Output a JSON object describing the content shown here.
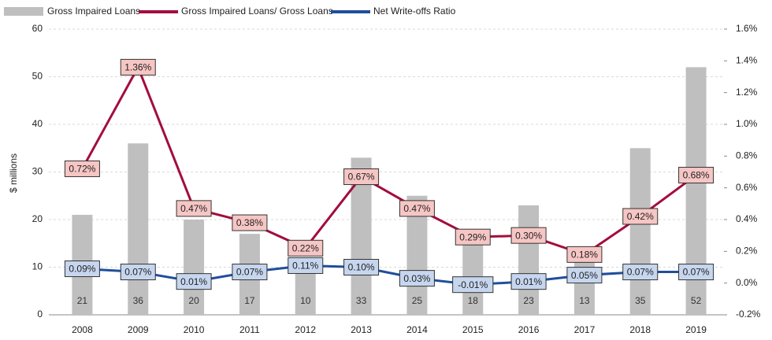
{
  "chart_data": {
    "type": "bar",
    "categories": [
      "2008",
      "2009",
      "2010",
      "2011",
      "2012",
      "2013",
      "2014",
      "2015",
      "2016",
      "2017",
      "2018",
      "2019"
    ],
    "series": [
      {
        "name": "Gross Impaired Loans",
        "type": "bar",
        "color": "#bfbfbf",
        "values": [
          21,
          36,
          20,
          17,
          10,
          33,
          25,
          18,
          23,
          13,
          35,
          52
        ]
      },
      {
        "name": "Gross Impaired Loans/ Gross Loans",
        "type": "line",
        "axis": "y2",
        "color": "#a30d3d",
        "label_fill": "#f6c6c4",
        "values": [
          0.72,
          1.36,
          0.47,
          0.38,
          0.22,
          0.67,
          0.47,
          0.29,
          0.3,
          0.18,
          0.42,
          0.68
        ],
        "value_labels": [
          "0.72%",
          "1.36%",
          "0.47%",
          "0.38%",
          "0.22%",
          "0.67%",
          "0.47%",
          "0.29%",
          "0.30%",
          "0.18%",
          "0.42%",
          "0.68%"
        ]
      },
      {
        "name": "Net Write-offs Ratio",
        "type": "line",
        "axis": "y2",
        "color": "#1f4e9c",
        "label_fill": "#c7d6ef",
        "values": [
          0.09,
          0.07,
          0.01,
          0.07,
          0.11,
          0.1,
          0.03,
          -0.01,
          0.01,
          0.05,
          0.07,
          0.07
        ],
        "value_labels": [
          "0.09%",
          "0.07%",
          "0.01%",
          "0.07%",
          "0.11%",
          "0.10%",
          "0.03%",
          "-0.01%",
          "0.01%",
          "0.05%",
          "0.07%",
          "0.07%"
        ]
      }
    ],
    "ylabel": "$ millions",
    "ylim": [
      0,
      60
    ],
    "yticks": [
      0,
      10,
      20,
      30,
      40,
      50,
      60
    ],
    "y2lim": [
      -0.2,
      1.6
    ],
    "y2ticks": [
      {
        "value": -0.2,
        "label": "-0.2%"
      },
      {
        "value": 0,
        "label": "0.0%"
      },
      {
        "value": 0.2,
        "label": "0.2%"
      },
      {
        "value": 0.4,
        "label": "0.4%"
      },
      {
        "value": 0.6,
        "label": "0.6%"
      },
      {
        "value": 0.8,
        "label": "0.8%"
      },
      {
        "value": 1.0,
        "label": "1.0%"
      },
      {
        "value": 1.2,
        "label": "1.2%"
      },
      {
        "value": 1.4,
        "label": "1.4%"
      },
      {
        "value": 1.6,
        "label": "1.6%"
      }
    ],
    "grid": true,
    "legend": "top-left"
  }
}
